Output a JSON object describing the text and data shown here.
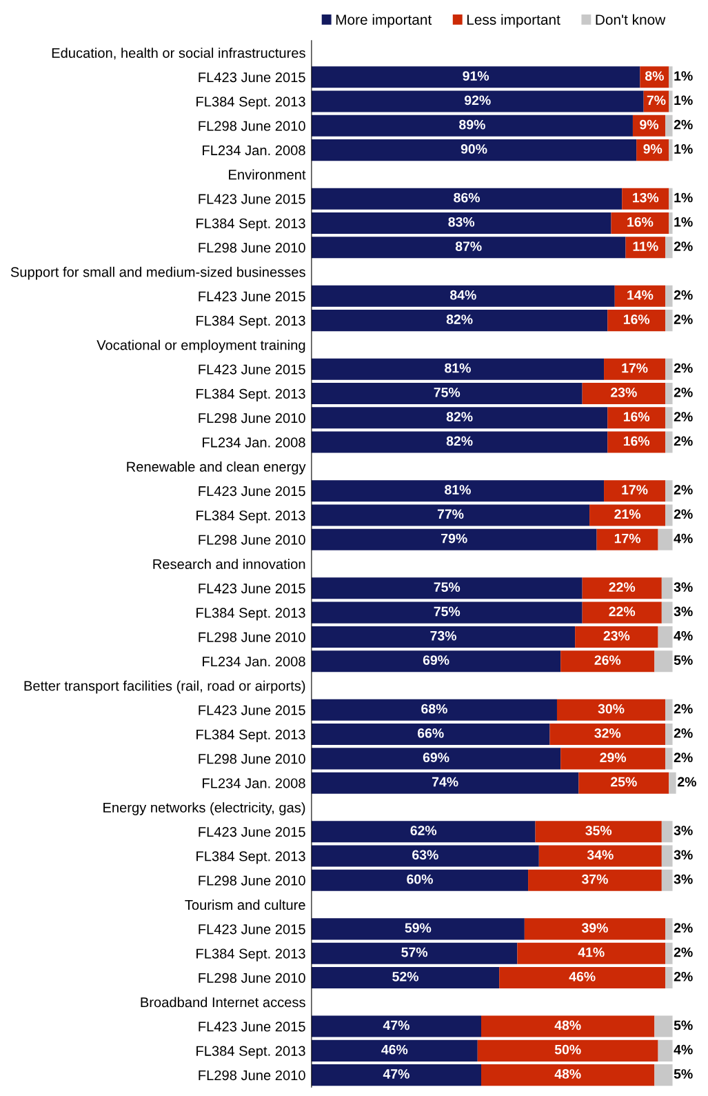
{
  "chart_data": {
    "type": "bar",
    "orientation": "horizontal",
    "stacked": true,
    "legend": "top",
    "grid": false,
    "tick_labels": "y",
    "xlim": [
      0,
      101
    ],
    "categories": [
      "Education, health or social infrastructures",
      "FL423 June 2015",
      "FL384 Sept. 2013",
      "FL298 June 2010",
      "FL234 Jan. 2008",
      "Environment",
      "FL423 June 2015",
      "FL384 Sept. 2013",
      "FL298 June 2010",
      "Support for small and medium-sized businesses",
      "FL423 June 2015",
      "FL384 Sept. 2013",
      "Vocational or employment training",
      "FL423 June 2015",
      "FL384 Sept. 2013",
      "FL298 June 2010",
      "FL234 Jan. 2008",
      "Renewable and clean energy",
      "FL423 June 2015",
      "FL384 Sept. 2013",
      "FL298 June 2010",
      "Research and innovation",
      "FL423 June 2015",
      "FL384 Sept. 2013",
      "FL298 June 2010",
      "FL234 Jan. 2008",
      "Better transport facilities (rail, road or airports)",
      "FL423 June 2015",
      "FL384 Sept. 2013",
      "FL298 June 2010",
      "FL234 Jan. 2008",
      "Energy networks (electricity, gas)",
      "FL423 June 2015",
      "FL384 Sept. 2013",
      "FL298 June 2010",
      "Tourism and culture",
      "FL423 June 2015",
      "FL384 Sept. 2013",
      "FL298 June 2010",
      "Broadband Internet access",
      "FL423 June 2015",
      "FL384 Sept. 2013",
      "FL298 June 2010"
    ],
    "series": [
      {
        "name": "More important",
        "color": "#131a5e",
        "values": [
          null,
          91,
          92,
          89,
          90,
          null,
          86,
          83,
          87,
          null,
          84,
          82,
          null,
          81,
          75,
          82,
          82,
          null,
          81,
          77,
          79,
          null,
          75,
          75,
          73,
          69,
          null,
          68,
          66,
          69,
          74,
          null,
          62,
          63,
          60,
          null,
          59,
          57,
          52,
          null,
          47,
          46,
          47
        ],
        "value_labels": [
          null,
          "91%",
          "92%",
          "89%",
          "90%",
          null,
          "86%",
          "83%",
          "87%",
          null,
          "84%",
          "82%",
          null,
          "81%",
          "75%",
          "82%",
          "82%",
          null,
          "81%",
          "77%",
          "79%",
          null,
          "75%",
          "75%",
          "73%",
          "69%",
          null,
          "68%",
          "66%",
          "69%",
          "74%",
          null,
          "62%",
          "63%",
          "60%",
          null,
          "59%",
          "57%",
          "52%",
          null,
          "47%",
          "46%",
          "47%"
        ]
      },
      {
        "name": "Less important",
        "color": "#cc2a06",
        "values": [
          null,
          8,
          7,
          9,
          9,
          null,
          13,
          16,
          11,
          null,
          14,
          16,
          null,
          17,
          23,
          16,
          16,
          null,
          17,
          21,
          17,
          null,
          22,
          22,
          23,
          26,
          null,
          30,
          32,
          29,
          25,
          null,
          35,
          34,
          37,
          null,
          39,
          41,
          46,
          null,
          48,
          50,
          48
        ],
        "value_labels": [
          null,
          "8%",
          "7%",
          "9%",
          "9%",
          null,
          "13%",
          "16%",
          "11%",
          null,
          "14%",
          "16%",
          null,
          "17%",
          "23%",
          "16%",
          "16%",
          null,
          "17%",
          "21%",
          "17%",
          null,
          "22%",
          "22%",
          "23%",
          "26%",
          null,
          "30%",
          "32%",
          "29%",
          "25%",
          null,
          "35%",
          "34%",
          "37%",
          null,
          "39%",
          "41%",
          "46%",
          null,
          "48%",
          "50%",
          "48%"
        ]
      },
      {
        "name": "Don't know",
        "color": "#c8c8c8",
        "values": [
          null,
          1,
          1,
          2,
          1,
          null,
          1,
          1,
          2,
          null,
          2,
          2,
          null,
          2,
          2,
          2,
          2,
          null,
          2,
          2,
          4,
          null,
          3,
          3,
          4,
          5,
          null,
          2,
          2,
          2,
          2,
          null,
          3,
          3,
          3,
          null,
          2,
          2,
          2,
          null,
          5,
          4,
          5
        ],
        "value_labels": [
          null,
          "1%",
          "1%",
          "2%",
          "1%",
          null,
          "1%",
          "1%",
          "2%",
          null,
          "2%",
          "2%",
          null,
          "2%",
          "2%",
          "2%",
          "2%",
          null,
          "2%",
          "2%",
          "4%",
          null,
          "3%",
          "3%",
          "4%",
          "5%",
          null,
          "2%",
          "2%",
          "2%",
          "2%",
          null,
          "3%",
          "3%",
          "3%",
          null,
          "2%",
          "2%",
          "2%",
          null,
          "5%",
          "4%",
          "5%"
        ]
      }
    ]
  }
}
